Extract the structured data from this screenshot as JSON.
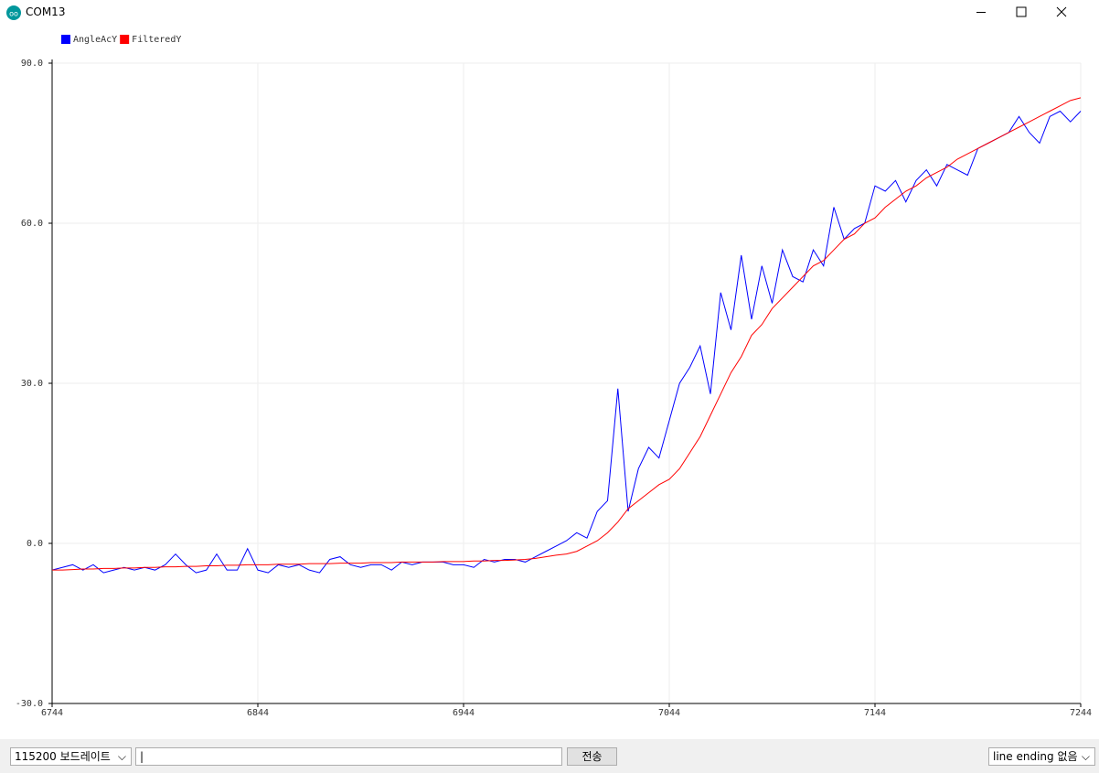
{
  "window": {
    "title": "COM13"
  },
  "chart_data": {
    "type": "line",
    "x": [
      6744,
      6749,
      6754,
      6759,
      6764,
      6769,
      6774,
      6779,
      6784,
      6789,
      6794,
      6799,
      6804,
      6809,
      6814,
      6819,
      6824,
      6829,
      6834,
      6839,
      6844,
      6849,
      6854,
      6859,
      6864,
      6869,
      6874,
      6879,
      6884,
      6889,
      6894,
      6899,
      6904,
      6909,
      6914,
      6919,
      6924,
      6929,
      6934,
      6939,
      6944,
      6949,
      6954,
      6959,
      6964,
      6969,
      6974,
      6979,
      6984,
      6989,
      6994,
      6999,
      7004,
      7009,
      7014,
      7019,
      7024,
      7029,
      7034,
      7039,
      7044,
      7049,
      7054,
      7059,
      7064,
      7069,
      7074,
      7079,
      7084,
      7089,
      7094,
      7099,
      7104,
      7109,
      7114,
      7119,
      7124,
      7129,
      7134,
      7139,
      7144,
      7149,
      7154,
      7159,
      7164,
      7169,
      7174,
      7179,
      7184,
      7189,
      7194,
      7199,
      7204,
      7209,
      7214,
      7219,
      7224,
      7229,
      7234,
      7239,
      7244
    ],
    "series": [
      {
        "name": "AngleAcY",
        "color": "#0000ff",
        "values": [
          -5,
          -4.5,
          -4,
          -5,
          -4,
          -5.5,
          -5,
          -4.5,
          -5,
          -4.5,
          -5,
          -4,
          -2,
          -4,
          -5.5,
          -5,
          -2,
          -5,
          -5,
          -1,
          -5,
          -5.5,
          -4,
          -4.5,
          -4,
          -5,
          -5.5,
          -3,
          -2.5,
          -4,
          -4.5,
          -4,
          -4,
          -5,
          -3.5,
          -4,
          -3.5,
          -3.5,
          -3.5,
          -4,
          -4,
          -4.5,
          -3,
          -3.5,
          -3,
          -3,
          -3.5,
          -2.5,
          -1.5,
          -0.5,
          0.5,
          2,
          1,
          6,
          8,
          29,
          6,
          14,
          18,
          16,
          23,
          30,
          33,
          37,
          28,
          47,
          40,
          54,
          42,
          52,
          45,
          55,
          50,
          49,
          55,
          52,
          63,
          57,
          59,
          60,
          67,
          66,
          68,
          64,
          68,
          70,
          67,
          71,
          70,
          69,
          74,
          75,
          76,
          77,
          80,
          77,
          75,
          80,
          81,
          79,
          81
        ]
      },
      {
        "name": "FilteredY",
        "color": "#ff0000",
        "values": [
          -5,
          -5,
          -4.9,
          -4.8,
          -4.8,
          -4.7,
          -4.7,
          -4.6,
          -4.6,
          -4.5,
          -4.5,
          -4.4,
          -4.4,
          -4.3,
          -4.3,
          -4.2,
          -4.2,
          -4.1,
          -4.1,
          -4,
          -4,
          -4,
          -3.9,
          -3.9,
          -3.9,
          -3.8,
          -3.8,
          -3.8,
          -3.7,
          -3.7,
          -3.7,
          -3.6,
          -3.6,
          -3.6,
          -3.5,
          -3.5,
          -3.5,
          -3.5,
          -3.4,
          -3.4,
          -3.4,
          -3.3,
          -3.3,
          -3.2,
          -3.2,
          -3.1,
          -3,
          -2.8,
          -2.5,
          -2.2,
          -2,
          -1.5,
          -0.5,
          0.5,
          2,
          4,
          6.5,
          8,
          9.5,
          11,
          12,
          14,
          17,
          20,
          24,
          28,
          32,
          35,
          39,
          41,
          44,
          46,
          48,
          50,
          52,
          53,
          55,
          57,
          58,
          60,
          61,
          63,
          64.5,
          66,
          67,
          68.5,
          69.5,
          70.5,
          72,
          73,
          74,
          75,
          76,
          77,
          78,
          79,
          80,
          81,
          82,
          83,
          83.5
        ]
      }
    ],
    "xlim": [
      6744,
      7244
    ],
    "xticks": [
      6744,
      6844,
      6944,
      7044,
      7144,
      7244
    ],
    "ylim": [
      -30,
      90
    ],
    "yticks": [
      {
        "value": -30,
        "label": "-30.0"
      },
      {
        "value": 0,
        "label": "0.0"
      },
      {
        "value": 30,
        "label": "30.0"
      },
      {
        "value": 60,
        "label": "60.0"
      },
      {
        "value": 90,
        "label": "90.0"
      }
    ],
    "grid": true,
    "legend": "top-left"
  },
  "controls": {
    "baud": "115200 보드레이트",
    "send": "전송",
    "line_ending": "line ending 없음"
  }
}
